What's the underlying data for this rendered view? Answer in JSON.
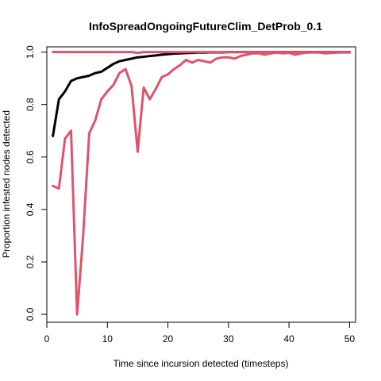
{
  "chart_data": {
    "type": "line",
    "title": "InfoSpreadOngoingFutureClim_DetProb_0.1",
    "xlabel": "Time since incursion detected (timesteps)",
    "ylabel": "Proportion infested nodes detected",
    "xlim": [
      0,
      51
    ],
    "ylim": [
      -0.03,
      1.02
    ],
    "xticks": [
      0,
      10,
      20,
      30,
      40,
      50
    ],
    "yticks": [
      0.0,
      0.2,
      0.4,
      0.6,
      0.8,
      1.0
    ],
    "xtick_labels": [
      "0",
      "10",
      "20",
      "30",
      "40",
      "50"
    ],
    "ytick_labels": [
      "0.0",
      "0.2",
      "0.4",
      "0.6",
      "0.8",
      "1.0"
    ],
    "grid": false,
    "series": [
      {
        "color": "#000000",
        "x": [
          1,
          2,
          3,
          4,
          5,
          6,
          7,
          8,
          9,
          10,
          11,
          12,
          13,
          14,
          15,
          16,
          17,
          18,
          19,
          20,
          21,
          22,
          23,
          24,
          25,
          26,
          27,
          28,
          29,
          30,
          31,
          32,
          33,
          34,
          35,
          36,
          37,
          38,
          39,
          40,
          41,
          42,
          43,
          44,
          45,
          46,
          47,
          48,
          49,
          50
        ],
        "y": [
          0.68,
          0.82,
          0.85,
          0.89,
          0.9,
          0.905,
          0.91,
          0.92,
          0.925,
          0.94,
          0.955,
          0.965,
          0.97,
          0.975,
          0.98,
          0.982,
          0.985,
          0.987,
          0.99,
          0.992,
          0.994,
          0.995,
          0.996,
          0.997,
          0.998,
          0.998,
          0.999,
          0.999,
          0.999,
          1.0,
          1.0,
          1.0,
          1.0,
          1.0,
          1.0,
          1.0,
          1.0,
          1.0,
          1.0,
          1.0,
          1.0,
          1.0,
          1.0,
          1.0,
          1.0,
          1.0,
          1.0,
          1.0,
          1.0,
          1.0
        ]
      },
      {
        "color": "#DF536B",
        "x": [
          1,
          2,
          3,
          4,
          5,
          6,
          7,
          8,
          9,
          10,
          11,
          12,
          13,
          14,
          15,
          16,
          17,
          18,
          19,
          20,
          21,
          22,
          23,
          24,
          25,
          26,
          27,
          28,
          29,
          30,
          31,
          32,
          33,
          34,
          35,
          36,
          37,
          38,
          39,
          40,
          41,
          42,
          43,
          44,
          45,
          46,
          47,
          48,
          49,
          50
        ],
        "y": [
          0.49,
          0.48,
          0.67,
          0.7,
          0.0,
          0.3,
          0.69,
          0.74,
          0.82,
          0.85,
          0.875,
          0.92,
          0.935,
          0.87,
          0.62,
          0.865,
          0.82,
          0.86,
          0.905,
          0.915,
          0.935,
          0.95,
          0.97,
          0.96,
          0.97,
          0.965,
          0.96,
          0.975,
          0.98,
          0.98,
          0.975,
          0.985,
          0.99,
          0.995,
          0.995,
          0.99,
          0.995,
          0.998,
          0.995,
          0.997,
          0.99,
          0.995,
          0.998,
          0.999,
          0.998,
          0.995,
          0.997,
          0.998,
          0.999,
          0.998
        ]
      },
      {
        "color": "#DF536B",
        "x": [
          1,
          2,
          3,
          4,
          5,
          6,
          7,
          8,
          9,
          10,
          11,
          12,
          13,
          14,
          15,
          16,
          17,
          18,
          19,
          20,
          21,
          22,
          23,
          24,
          25,
          26,
          27,
          28,
          29,
          30,
          31,
          32,
          33,
          34,
          35,
          36,
          37,
          38,
          39,
          40,
          41,
          42,
          43,
          44,
          45,
          46,
          47,
          48,
          49,
          50
        ],
        "y": [
          1.0,
          1.0,
          1.0,
          1.0,
          1.0,
          1.0,
          1.0,
          1.0,
          1.0,
          1.0,
          1.0,
          1.0,
          1.0,
          1.0,
          0.997,
          1.0,
          1.0,
          1.0,
          1.0,
          1.0,
          1.0,
          1.0,
          1.0,
          1.0,
          1.0,
          1.0,
          1.0,
          1.0,
          1.0,
          1.0,
          1.0,
          1.0,
          1.0,
          1.0,
          1.0,
          1.0,
          1.0,
          1.0,
          1.0,
          1.0,
          1.0,
          1.0,
          1.0,
          1.0,
          1.0,
          1.0,
          1.0,
          1.0,
          1.0,
          1.0
        ]
      }
    ]
  }
}
